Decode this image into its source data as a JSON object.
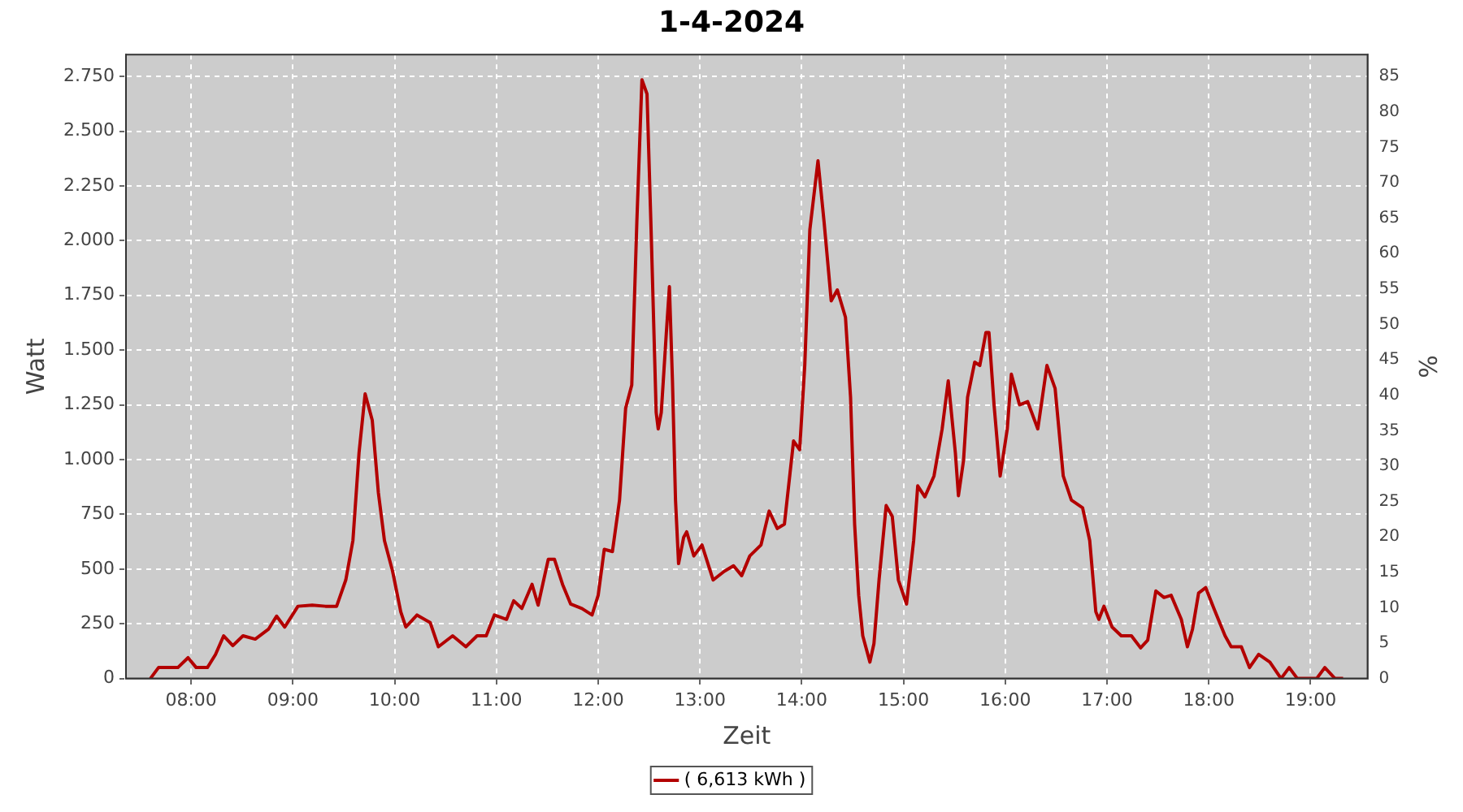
{
  "chart_data": {
    "type": "line",
    "title": "1-4-2024",
    "xlabel": "Zeit",
    "ylabel": "Watt",
    "y2label": "%",
    "xlim": [
      7.36,
      19.56
    ],
    "xticks": [
      {
        "value": 8,
        "label": "08:00"
      },
      {
        "value": 9,
        "label": "09:00"
      },
      {
        "value": 10,
        "label": "10:00"
      },
      {
        "value": 11,
        "label": "11:00"
      },
      {
        "value": 12,
        "label": "12:00"
      },
      {
        "value": 13,
        "label": "13:00"
      },
      {
        "value": 14,
        "label": "14:00"
      },
      {
        "value": 15,
        "label": "15:00"
      },
      {
        "value": 16,
        "label": "16:00"
      },
      {
        "value": 17,
        "label": "17:00"
      },
      {
        "value": 18,
        "label": "18:00"
      },
      {
        "value": 19,
        "label": "19:00"
      }
    ],
    "ylim": [
      0,
      2850
    ],
    "yticks": [
      0,
      {
        "value": 250,
        "label": "250"
      },
      {
        "value": 500,
        "label": "500"
      },
      {
        "value": 750,
        "label": "750"
      },
      {
        "value": 1000,
        "label": "1.000"
      },
      {
        "value": 1250,
        "label": "1.250"
      },
      {
        "value": 1500,
        "label": "1.500"
      },
      {
        "value": 1750,
        "label": "1.750"
      },
      {
        "value": 2000,
        "label": "2.000"
      },
      {
        "value": 2250,
        "label": "2.250"
      },
      {
        "value": 2500,
        "label": "2.500"
      },
      {
        "value": 2750,
        "label": "2.750"
      }
    ],
    "y2lim": [
      0,
      88.1
    ],
    "y2ticks": [
      0,
      5,
      10,
      15,
      20,
      25,
      30,
      35,
      40,
      45,
      50,
      55,
      60,
      65,
      70,
      75,
      80,
      85
    ],
    "grid": true,
    "legend": "bottom",
    "marker": "none",
    "line_style": "solid",
    "series": [
      {
        "name": "( 6,613 kWh )",
        "color": "#b30000",
        "x": [
          7.6,
          7.68,
          7.87,
          7.97,
          8.05,
          8.16,
          8.24,
          8.32,
          8.41,
          8.51,
          8.63,
          8.76,
          8.84,
          8.92,
          9.05,
          9.19,
          9.32,
          9.43,
          9.52,
          9.59,
          9.65,
          9.71,
          9.78,
          9.84,
          9.9,
          9.98,
          10.06,
          10.11,
          10.22,
          10.35,
          10.43,
          10.57,
          10.7,
          10.81,
          10.9,
          10.98,
          11.1,
          11.17,
          11.25,
          11.35,
          11.41,
          11.51,
          11.57,
          11.65,
          11.73,
          11.84,
          11.94,
          12.0,
          12.06,
          12.14,
          12.21,
          12.27,
          12.33,
          12.38,
          12.43,
          12.48,
          12.52,
          12.57,
          12.59,
          12.62,
          12.67,
          12.7,
          12.73,
          12.76,
          12.79,
          12.84,
          12.87,
          12.94,
          13.02,
          13.13,
          13.24,
          13.33,
          13.41,
          13.49,
          13.6,
          13.68,
          13.76,
          13.83,
          13.92,
          13.98,
          14.03,
          14.08,
          14.16,
          14.22,
          14.29,
          14.35,
          14.43,
          14.48,
          14.52,
          14.56,
          14.6,
          14.67,
          14.71,
          14.76,
          14.83,
          14.89,
          14.95,
          15.03,
          15.1,
          15.14,
          15.21,
          15.3,
          15.38,
          15.44,
          15.51,
          15.54,
          15.59,
          15.63,
          15.7,
          15.75,
          15.81,
          15.84,
          15.89,
          15.95,
          16.02,
          16.06,
          16.14,
          16.22,
          16.32,
          16.41,
          16.49,
          16.57,
          16.65,
          16.76,
          16.83,
          16.89,
          16.92,
          16.97,
          17.05,
          17.14,
          17.24,
          17.33,
          17.4,
          17.48,
          17.56,
          17.63,
          17.73,
          17.79,
          17.84,
          17.9,
          17.97,
          18.05,
          18.16,
          18.22,
          18.32,
          18.4,
          18.49,
          18.6,
          18.71,
          18.79,
          18.87,
          19.06,
          19.14,
          19.24,
          19.32
        ],
        "values": [
          0,
          50,
          50,
          95,
          50,
          50,
          110,
          195,
          150,
          195,
          180,
          225,
          285,
          235,
          330,
          335,
          330,
          330,
          450,
          630,
          1030,
          1300,
          1180,
          850,
          630,
          490,
          305,
          235,
          290,
          255,
          145,
          195,
          145,
          195,
          195,
          290,
          270,
          355,
          320,
          430,
          335,
          545,
          545,
          430,
          340,
          320,
          290,
          380,
          590,
          580,
          815,
          1235,
          1340,
          2085,
          2735,
          2670,
          2050,
          1215,
          1140,
          1215,
          1580,
          1790,
          1360,
          815,
          525,
          645,
          670,
          560,
          610,
          450,
          490,
          515,
          470,
          560,
          610,
          765,
          685,
          705,
          1085,
          1045,
          1430,
          2050,
          2365,
          2085,
          1725,
          1775,
          1650,
          1285,
          705,
          380,
          195,
          75,
          160,
          450,
          790,
          740,
          450,
          340,
          630,
          880,
          830,
          925,
          1140,
          1360,
          1030,
          835,
          995,
          1285,
          1445,
          1430,
          1580,
          1580,
          1250,
          925,
          1140,
          1390,
          1250,
          1265,
          1140,
          1430,
          1325,
          925,
          815,
          780,
          630,
          305,
          270,
          330,
          235,
          195,
          195,
          140,
          175,
          400,
          370,
          380,
          270,
          145,
          225,
          390,
          415,
          320,
          195,
          145,
          145,
          50,
          110,
          75,
          0,
          50,
          0,
          0,
          50,
          0,
          0
        ]
      }
    ]
  }
}
